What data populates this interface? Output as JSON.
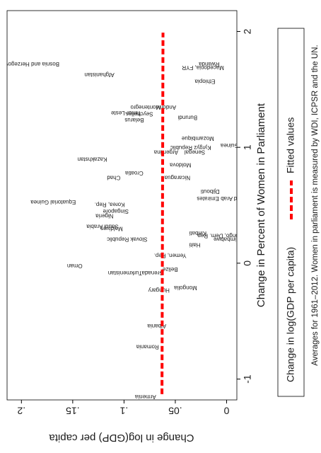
{
  "chart_data": {
    "type": "scatter",
    "x_label": "Change in Percent of Women in Parliament",
    "y_label": "Change in log(GDP) per capita",
    "note": "Averages for 1961–2012. Women in parliament is measured by WDI, ICPSR and the UN.",
    "xlim": [
      -1.18,
      2.18
    ],
    "ylim": [
      -0.01,
      0.214
    ],
    "xticks": [
      -1,
      0,
      1,
      2
    ],
    "yticks": [
      0,
      {
        "value": 0.05,
        "label": ".05"
      },
      {
        "value": 0.1,
        "label": ".1"
      },
      {
        "value": 0.15,
        "label": ".15"
      },
      {
        "value": 0.2,
        "label": ".2"
      }
    ],
    "grid": false,
    "series": [
      {
        "name": "Change in  log(GDP per capita)",
        "color": "#1a1a1a",
        "labels": [
          "Bosnia and Herzegovina",
          "Afghanistan",
          "Equatorial Guinea",
          "Oman",
          "Turkmenistan",
          "Saudi Arabia",
          "Kazakhstan",
          "Chad",
          "Nigeria",
          "Grenada",
          "Hungary",
          "Albania",
          "Romania",
          "Armenia",
          "Timor-Leste",
          "Belarus",
          "Seychelles",
          "Montenegro",
          "Andorra",
          "Burundi",
          "Macedonia, FYR",
          "Rwanda",
          "Ethiopia",
          "Mozambique",
          "Guinea",
          "Djibouti",
          "United Arab Emirates",
          "Congo, Dem. Rep.",
          "Zimbabwe",
          "Mongolia",
          "Yemen, Rep.",
          "Belize",
          "Haiti",
          "Kiribati",
          "Nicaragua",
          "Argentina",
          "Senegal",
          "Kyrgyz Republic",
          "Slovak Republic",
          "Maldives",
          "Singapore",
          "Korea, Rep.",
          "Moldova",
          "Croatia"
        ],
        "x": [
          1.72,
          1.63,
          0.53,
          -0.02,
          -0.08,
          0.32,
          0.9,
          0.74,
          0.41,
          -0.08,
          -0.23,
          -0.54,
          -0.72,
          -1.15,
          1.3,
          1.24,
          1.29,
          1.35,
          1.35,
          1.26,
          1.69,
          1.72,
          1.57,
          1.08,
          1.02,
          0.62,
          0.56,
          0.24,
          0.21,
          -0.21,
          0.07,
          -0.05,
          0.16,
          0.26,
          0.74,
          0.96,
          0.96,
          1.0,
          0.21,
          0.3,
          0.45,
          0.51,
          0.85,
          0.78
        ],
        "values": [
          0.193,
          0.124,
          0.169,
          0.148,
          0.099,
          0.121,
          0.131,
          0.11,
          0.119,
          0.072,
          0.066,
          0.068,
          0.077,
          0.079,
          0.098,
          0.09,
          0.085,
          0.079,
          0.059,
          0.038,
          0.023,
          0.017,
          0.021,
          0.028,
          -0.003,
          0.016,
          0.003,
          0.007,
          0.0,
          0.04,
          0.055,
          0.055,
          0.031,
          0.028,
          0.048,
          0.059,
          0.031,
          0.035,
          0.097,
          0.112,
          0.108,
          0.114,
          0.045,
          0.09
        ]
      },
      {
        "name": "Fitted values",
        "color": "#ff0000",
        "x": [
          -1.13,
          1.99
        ],
        "values": [
          0.063,
          0.062
        ]
      }
    ]
  }
}
